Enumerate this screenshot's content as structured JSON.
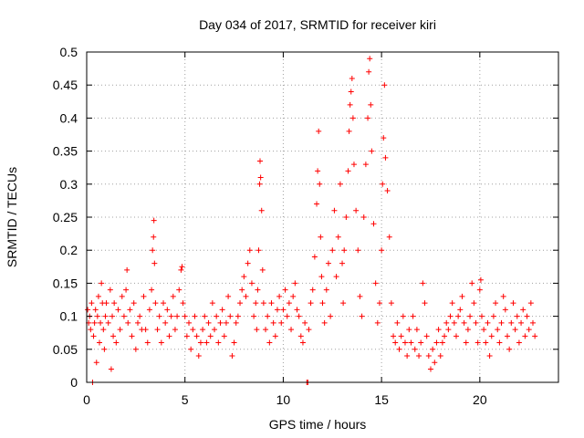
{
  "chart_data": {
    "type": "scatter",
    "title": "Day 034 of 2017, SRMTID for receiver kiri",
    "xlabel": "GPS time / hours",
    "ylabel": "SRMTID / TECUs",
    "xlim": [
      0,
      24
    ],
    "ylim": [
      0,
      0.5
    ],
    "xticks": [
      0,
      5,
      10,
      15,
      20
    ],
    "xtick_labels": [
      "0",
      "5",
      "10",
      "15",
      "20"
    ],
    "yticks": [
      0,
      0.05,
      0.1,
      0.15,
      0.2,
      0.25,
      0.3,
      0.35,
      0.4,
      0.45,
      0.5
    ],
    "ytick_labels": [
      "0",
      "0.05",
      "0.1",
      "0.15",
      "0.2",
      "0.25",
      "0.3",
      "0.35",
      "0.4",
      "0.45",
      "0.5"
    ],
    "grid": true,
    "marker": "+",
    "color": "#ff0000",
    "series": [
      {
        "name": "SRMTID",
        "points": [
          [
            0.05,
            0.11
          ],
          [
            0.1,
            0.09
          ],
          [
            0.15,
            0.1
          ],
          [
            0.2,
            0.08
          ],
          [
            0.25,
            0.12
          ],
          [
            0.3,
            0.0
          ],
          [
            0.35,
            0.07
          ],
          [
            0.4,
            0.09
          ],
          [
            0.45,
            0.11
          ],
          [
            0.5,
            0.03
          ],
          [
            0.55,
            0.1
          ],
          [
            0.6,
            0.13
          ],
          [
            0.65,
            0.06
          ],
          [
            0.7,
            0.09
          ],
          [
            0.75,
            0.15
          ],
          [
            0.8,
            0.12
          ],
          [
            0.85,
            0.08
          ],
          [
            0.9,
            0.05
          ],
          [
            0.95,
            0.1
          ],
          [
            1.0,
            0.12
          ],
          [
            1.1,
            0.09
          ],
          [
            1.2,
            0.14
          ],
          [
            1.25,
            0.02
          ],
          [
            1.3,
            0.1
          ],
          [
            1.35,
            0.07
          ],
          [
            1.4,
            0.12
          ],
          [
            1.5,
            0.06
          ],
          [
            1.6,
            0.11
          ],
          [
            1.7,
            0.08
          ],
          [
            1.8,
            0.13
          ],
          [
            1.9,
            0.1
          ],
          [
            2.0,
            0.14
          ],
          [
            2.05,
            0.17
          ],
          [
            2.1,
            0.09
          ],
          [
            2.2,
            0.11
          ],
          [
            2.3,
            0.07
          ],
          [
            2.4,
            0.12
          ],
          [
            2.5,
            0.05
          ],
          [
            2.6,
            0.09
          ],
          [
            2.7,
            0.1
          ],
          [
            2.8,
            0.08
          ],
          [
            2.9,
            0.13
          ],
          [
            3.0,
            0.08
          ],
          [
            3.1,
            0.06
          ],
          [
            3.2,
            0.11
          ],
          [
            3.3,
            0.14
          ],
          [
            3.35,
            0.2
          ],
          [
            3.4,
            0.22
          ],
          [
            3.42,
            0.245
          ],
          [
            3.45,
            0.18
          ],
          [
            3.5,
            0.12
          ],
          [
            3.6,
            0.08
          ],
          [
            3.7,
            0.1
          ],
          [
            3.8,
            0.06
          ],
          [
            3.9,
            0.12
          ],
          [
            4.0,
            0.09
          ],
          [
            4.1,
            0.11
          ],
          [
            4.2,
            0.07
          ],
          [
            4.3,
            0.1
          ],
          [
            4.4,
            0.13
          ],
          [
            4.5,
            0.08
          ],
          [
            4.6,
            0.1
          ],
          [
            4.7,
            0.14
          ],
          [
            4.8,
            0.17
          ],
          [
            4.85,
            0.175
          ],
          [
            4.9,
            0.12
          ],
          [
            5.0,
            0.1
          ],
          [
            5.1,
            0.07
          ],
          [
            5.2,
            0.09
          ],
          [
            5.3,
            0.05
          ],
          [
            5.4,
            0.08
          ],
          [
            5.5,
            0.1
          ],
          [
            5.6,
            0.07
          ],
          [
            5.7,
            0.04
          ],
          [
            5.8,
            0.06
          ],
          [
            5.9,
            0.08
          ],
          [
            6.0,
            0.1
          ],
          [
            6.1,
            0.06
          ],
          [
            6.2,
            0.09
          ],
          [
            6.3,
            0.07
          ],
          [
            6.4,
            0.12
          ],
          [
            6.5,
            0.08
          ],
          [
            6.6,
            0.1
          ],
          [
            6.7,
            0.06
          ],
          [
            6.8,
            0.09
          ],
          [
            6.9,
            0.11
          ],
          [
            7.0,
            0.07
          ],
          [
            7.1,
            0.09
          ],
          [
            7.2,
            0.13
          ],
          [
            7.3,
            0.1
          ],
          [
            7.4,
            0.04
          ],
          [
            7.5,
            0.06
          ],
          [
            7.6,
            0.09
          ],
          [
            7.7,
            0.1
          ],
          [
            7.8,
            0.12
          ],
          [
            7.9,
            0.14
          ],
          [
            8.0,
            0.16
          ],
          [
            8.1,
            0.13
          ],
          [
            8.2,
            0.18
          ],
          [
            8.3,
            0.2
          ],
          [
            8.4,
            0.15
          ],
          [
            8.5,
            0.1
          ],
          [
            8.6,
            0.12
          ],
          [
            8.65,
            0.08
          ],
          [
            8.7,
            0.14
          ],
          [
            8.75,
            0.2
          ],
          [
            8.8,
            0.3
          ],
          [
            8.82,
            0.335
          ],
          [
            8.85,
            0.31
          ],
          [
            8.9,
            0.26
          ],
          [
            8.95,
            0.17
          ],
          [
            9.0,
            0.12
          ],
          [
            9.1,
            0.08
          ],
          [
            9.2,
            0.1
          ],
          [
            9.3,
            0.06
          ],
          [
            9.4,
            0.12
          ],
          [
            9.5,
            0.09
          ],
          [
            9.6,
            0.07
          ],
          [
            9.7,
            0.11
          ],
          [
            9.8,
            0.13
          ],
          [
            9.9,
            0.09
          ],
          [
            10.0,
            0.11
          ],
          [
            10.1,
            0.14
          ],
          [
            10.2,
            0.1
          ],
          [
            10.3,
            0.12
          ],
          [
            10.4,
            0.08
          ],
          [
            10.5,
            0.13
          ],
          [
            10.6,
            0.15
          ],
          [
            10.7,
            0.11
          ],
          [
            10.8,
            0.1
          ],
          [
            10.9,
            0.07
          ],
          [
            11.0,
            0.06
          ],
          [
            11.1,
            0.09
          ],
          [
            11.2,
            0.0
          ],
          [
            11.25,
            0.0
          ],
          [
            11.3,
            0.08
          ],
          [
            11.4,
            0.12
          ],
          [
            11.5,
            0.14
          ],
          [
            11.6,
            0.19
          ],
          [
            11.7,
            0.27
          ],
          [
            11.75,
            0.32
          ],
          [
            11.8,
            0.38
          ],
          [
            11.85,
            0.3
          ],
          [
            11.9,
            0.22
          ],
          [
            11.95,
            0.16
          ],
          [
            12.0,
            0.12
          ],
          [
            12.1,
            0.09
          ],
          [
            12.2,
            0.14
          ],
          [
            12.3,
            0.18
          ],
          [
            12.4,
            0.1
          ],
          [
            12.5,
            0.2
          ],
          [
            12.6,
            0.26
          ],
          [
            12.7,
            0.16
          ],
          [
            12.8,
            0.22
          ],
          [
            12.9,
            0.3
          ],
          [
            13.0,
            0.18
          ],
          [
            13.05,
            0.12
          ],
          [
            13.1,
            0.2
          ],
          [
            13.2,
            0.25
          ],
          [
            13.3,
            0.32
          ],
          [
            13.35,
            0.38
          ],
          [
            13.4,
            0.42
          ],
          [
            13.45,
            0.44
          ],
          [
            13.5,
            0.46
          ],
          [
            13.55,
            0.4
          ],
          [
            13.6,
            0.33
          ],
          [
            13.7,
            0.26
          ],
          [
            13.8,
            0.2
          ],
          [
            13.9,
            0.13
          ],
          [
            14.0,
            0.1
          ],
          [
            14.1,
            0.25
          ],
          [
            14.2,
            0.33
          ],
          [
            14.3,
            0.4
          ],
          [
            14.35,
            0.47
          ],
          [
            14.4,
            0.49
          ],
          [
            14.45,
            0.42
          ],
          [
            14.5,
            0.35
          ],
          [
            14.6,
            0.24
          ],
          [
            14.7,
            0.15
          ],
          [
            14.8,
            0.09
          ],
          [
            14.9,
            0.12
          ],
          [
            15.0,
            0.2
          ],
          [
            15.05,
            0.3
          ],
          [
            15.1,
            0.37
          ],
          [
            15.15,
            0.45
          ],
          [
            15.2,
            0.34
          ],
          [
            15.3,
            0.29
          ],
          [
            15.4,
            0.22
          ],
          [
            15.5,
            0.12
          ],
          [
            15.6,
            0.07
          ],
          [
            15.7,
            0.06
          ],
          [
            15.8,
            0.09
          ],
          [
            15.9,
            0.05
          ],
          [
            16.0,
            0.07
          ],
          [
            16.1,
            0.1
          ],
          [
            16.2,
            0.06
          ],
          [
            16.3,
            0.04
          ],
          [
            16.4,
            0.08
          ],
          [
            16.5,
            0.06
          ],
          [
            16.6,
            0.1
          ],
          [
            16.7,
            0.05
          ],
          [
            16.8,
            0.08
          ],
          [
            16.9,
            0.04
          ],
          [
            17.0,
            0.06
          ],
          [
            17.1,
            0.15
          ],
          [
            17.2,
            0.12
          ],
          [
            17.3,
            0.07
          ],
          [
            17.4,
            0.04
          ],
          [
            17.5,
            0.02
          ],
          [
            17.6,
            0.05
          ],
          [
            17.7,
            0.03
          ],
          [
            17.8,
            0.06
          ],
          [
            17.9,
            0.08
          ],
          [
            18.0,
            0.04
          ],
          [
            18.1,
            0.06
          ],
          [
            18.2,
            0.07
          ],
          [
            18.3,
            0.09
          ],
          [
            18.4,
            0.08
          ],
          [
            18.5,
            0.1
          ],
          [
            18.6,
            0.12
          ],
          [
            18.7,
            0.09
          ],
          [
            18.8,
            0.07
          ],
          [
            18.9,
            0.1
          ],
          [
            19.0,
            0.11
          ],
          [
            19.1,
            0.13
          ],
          [
            19.2,
            0.09
          ],
          [
            19.3,
            0.06
          ],
          [
            19.4,
            0.08
          ],
          [
            19.5,
            0.1
          ],
          [
            19.6,
            0.15
          ],
          [
            19.7,
            0.12
          ],
          [
            19.8,
            0.09
          ],
          [
            19.9,
            0.06
          ],
          [
            20.0,
            0.14
          ],
          [
            20.05,
            0.155
          ],
          [
            20.1,
            0.1
          ],
          [
            20.2,
            0.08
          ],
          [
            20.3,
            0.06
          ],
          [
            20.4,
            0.09
          ],
          [
            20.5,
            0.04
          ],
          [
            20.6,
            0.07
          ],
          [
            20.7,
            0.1
          ],
          [
            20.8,
            0.12
          ],
          [
            20.9,
            0.08
          ],
          [
            21.0,
            0.06
          ],
          [
            21.1,
            0.09
          ],
          [
            21.2,
            0.13
          ],
          [
            21.3,
            0.11
          ],
          [
            21.4,
            0.07
          ],
          [
            21.5,
            0.05
          ],
          [
            21.6,
            0.09
          ],
          [
            21.7,
            0.12
          ],
          [
            21.8,
            0.08
          ],
          [
            21.9,
            0.1
          ],
          [
            22.0,
            0.06
          ],
          [
            22.1,
            0.09
          ],
          [
            22.2,
            0.11
          ],
          [
            22.3,
            0.07
          ],
          [
            22.4,
            0.1
          ],
          [
            22.5,
            0.08
          ],
          [
            22.6,
            0.12
          ],
          [
            22.7,
            0.09
          ],
          [
            22.8,
            0.07
          ]
        ]
      }
    ]
  }
}
